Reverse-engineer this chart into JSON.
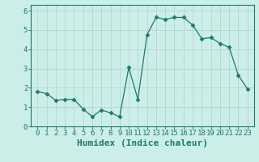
{
  "x": [
    0,
    1,
    2,
    3,
    4,
    5,
    6,
    7,
    8,
    9,
    10,
    11,
    12,
    13,
    14,
    15,
    16,
    17,
    18,
    19,
    20,
    21,
    22,
    23
  ],
  "y": [
    1.8,
    1.7,
    1.35,
    1.4,
    1.4,
    0.9,
    0.5,
    0.85,
    0.7,
    0.5,
    3.05,
    1.4,
    4.75,
    5.65,
    5.55,
    5.65,
    5.65,
    5.25,
    4.55,
    4.6,
    4.3,
    4.1,
    2.65,
    1.95
  ],
  "line_color": "#1a7a6e",
  "marker": "D",
  "marker_size": 2.5,
  "bg_color": "#cceee8",
  "grid_color": "#b8d8d4",
  "xlabel": "Humidex (Indice chaleur)",
  "xlabel_fontsize": 8,
  "tick_fontsize": 6.5,
  "ylim": [
    0,
    6.3
  ],
  "yticks": [
    0,
    1,
    2,
    3,
    4,
    5,
    6
  ],
  "xticks": [
    0,
    1,
    2,
    3,
    4,
    5,
    6,
    7,
    8,
    9,
    10,
    11,
    12,
    13,
    14,
    15,
    16,
    17,
    18,
    19,
    20,
    21,
    22,
    23
  ]
}
